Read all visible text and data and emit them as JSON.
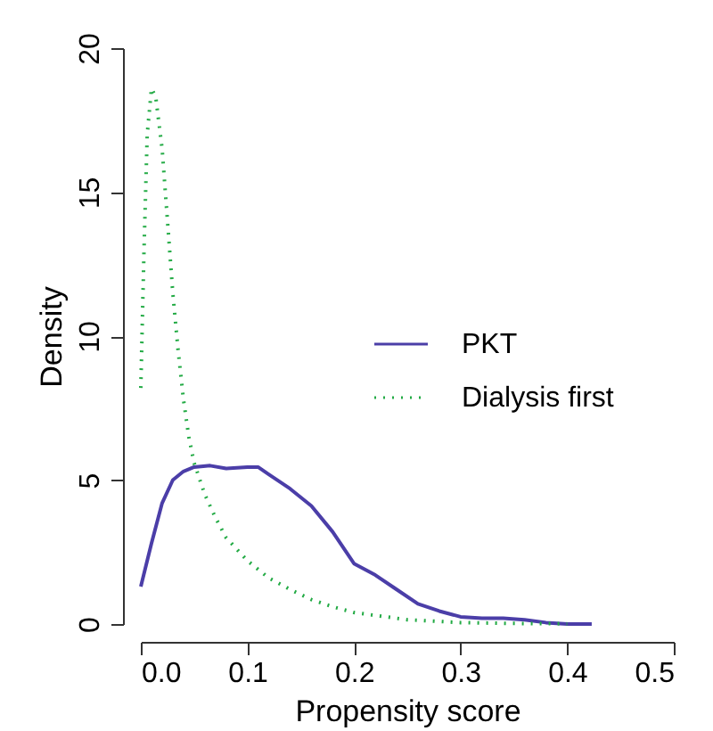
{
  "chart_data": {
    "type": "line",
    "xlabel": "Propensity score",
    "ylabel": "Density",
    "xlim": [
      0,
      0.5
    ],
    "xticks": [
      {
        "value": 0,
        "label": "0.0"
      },
      0.1,
      0.2,
      0.3,
      0.4,
      0.5
    ],
    "ylim": [
      0,
      20
    ],
    "yticks": [
      0,
      5,
      10,
      15,
      20
    ],
    "grid": false,
    "legend": "right",
    "series": [
      {
        "name": "PKT",
        "color": "#4b3ea8",
        "line_style": "solid",
        "x": [
          0,
          0.01,
          0.02,
          0.03,
          0.04,
          0.05,
          0.065,
          0.08,
          0.1,
          0.11,
          0.12,
          0.14,
          0.16,
          0.18,
          0.2,
          0.22,
          0.24,
          0.26,
          0.28,
          0.3,
          0.32,
          0.34,
          0.36,
          0.38,
          0.4,
          0.423
        ],
        "values": [
          1.3,
          2.8,
          4.2,
          5.0,
          5.3,
          5.45,
          5.5,
          5.4,
          5.45,
          5.45,
          5.2,
          4.7,
          4.1,
          3.2,
          2.1,
          1.7,
          1.2,
          0.7,
          0.45,
          0.25,
          0.2,
          0.2,
          0.15,
          0.05,
          0,
          0
        ]
      },
      {
        "name": "Dialysis first",
        "color": "#22aa44",
        "line_style": "dotted",
        "x": [
          0,
          0.003,
          0.006,
          0.01,
          0.014,
          0.02,
          0.025,
          0.03,
          0.035,
          0.04,
          0.045,
          0.05,
          0.06,
          0.07,
          0.08,
          0.1,
          0.12,
          0.14,
          0.16,
          0.18,
          0.2,
          0.22,
          0.25,
          0.3,
          0.35,
          0.4
        ],
        "values": [
          8.2,
          13,
          17,
          18.6,
          18.3,
          16.5,
          14,
          11.5,
          9.5,
          7.8,
          6.5,
          5.6,
          4.5,
          3.7,
          3.0,
          2.2,
          1.6,
          1.2,
          0.85,
          0.6,
          0.4,
          0.3,
          0.15,
          0.05,
          0.02,
          0.01
        ]
      }
    ]
  }
}
